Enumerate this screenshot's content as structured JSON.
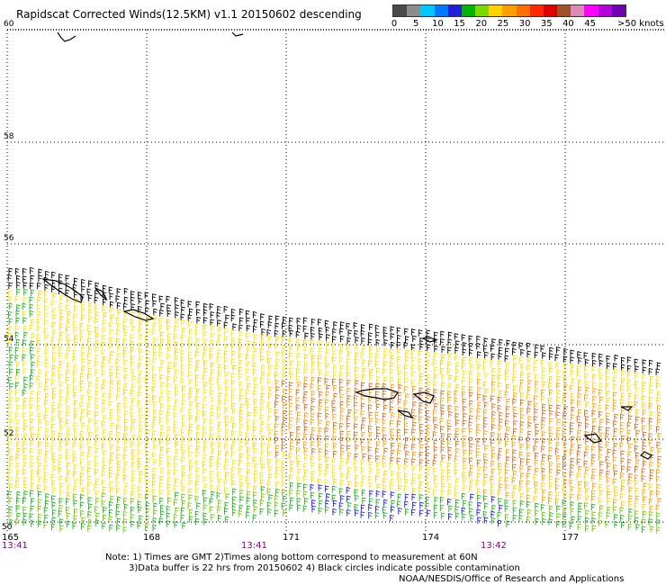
{
  "title": "Rapidscat Corrected Winds(12.5KM) v1.1 20150602 descending",
  "legend": {
    "colors": [
      "#4a4a4a",
      "#8c8c8c",
      "#00c8ff",
      "#0078ff",
      "#1e1edc",
      "#00b400",
      "#78dc00",
      "#ffd200",
      "#ffa000",
      "#ff6e00",
      "#ff2800",
      "#dc0000",
      "#a05028",
      "#dc8cb4",
      "#ff00ff",
      "#b400dc",
      "#6e00b4"
    ],
    "labels": [
      {
        "text": "0",
        "pos": 0
      },
      {
        "text": "5",
        "pos": 5
      },
      {
        "text": "10",
        "pos": 10
      },
      {
        "text": "15",
        "pos": 15
      },
      {
        "text": "20",
        "pos": 20
      },
      {
        "text": "25",
        "pos": 25
      },
      {
        "text": "30",
        "pos": 30
      },
      {
        "text": "35",
        "pos": 35
      },
      {
        "text": "40",
        "pos": 40
      },
      {
        "text": "45",
        "pos": 45
      }
    ],
    "max_label": ">50 knots"
  },
  "axes": {
    "lat_labels": [
      "60",
      "58",
      "56",
      "54",
      "52",
      "50"
    ],
    "lon_labels": [
      "165",
      "168",
      "171",
      "174",
      "177"
    ],
    "time_labels": [
      "13:41",
      "13:41",
      "13:42"
    ]
  },
  "notes": {
    "line1": "Note: 1) Times are GMT 2)Times along bottom correspond to measurement at 60N",
    "line2": "3)Data buffer is 22 hrs from 20150602 4) Black circles indicate possible contamination",
    "credit": "NOAA/NESDIS/Office of Research and Applications"
  },
  "colors": {
    "time_label": "#800080",
    "grid": "#000000",
    "coast": "#000000"
  }
}
